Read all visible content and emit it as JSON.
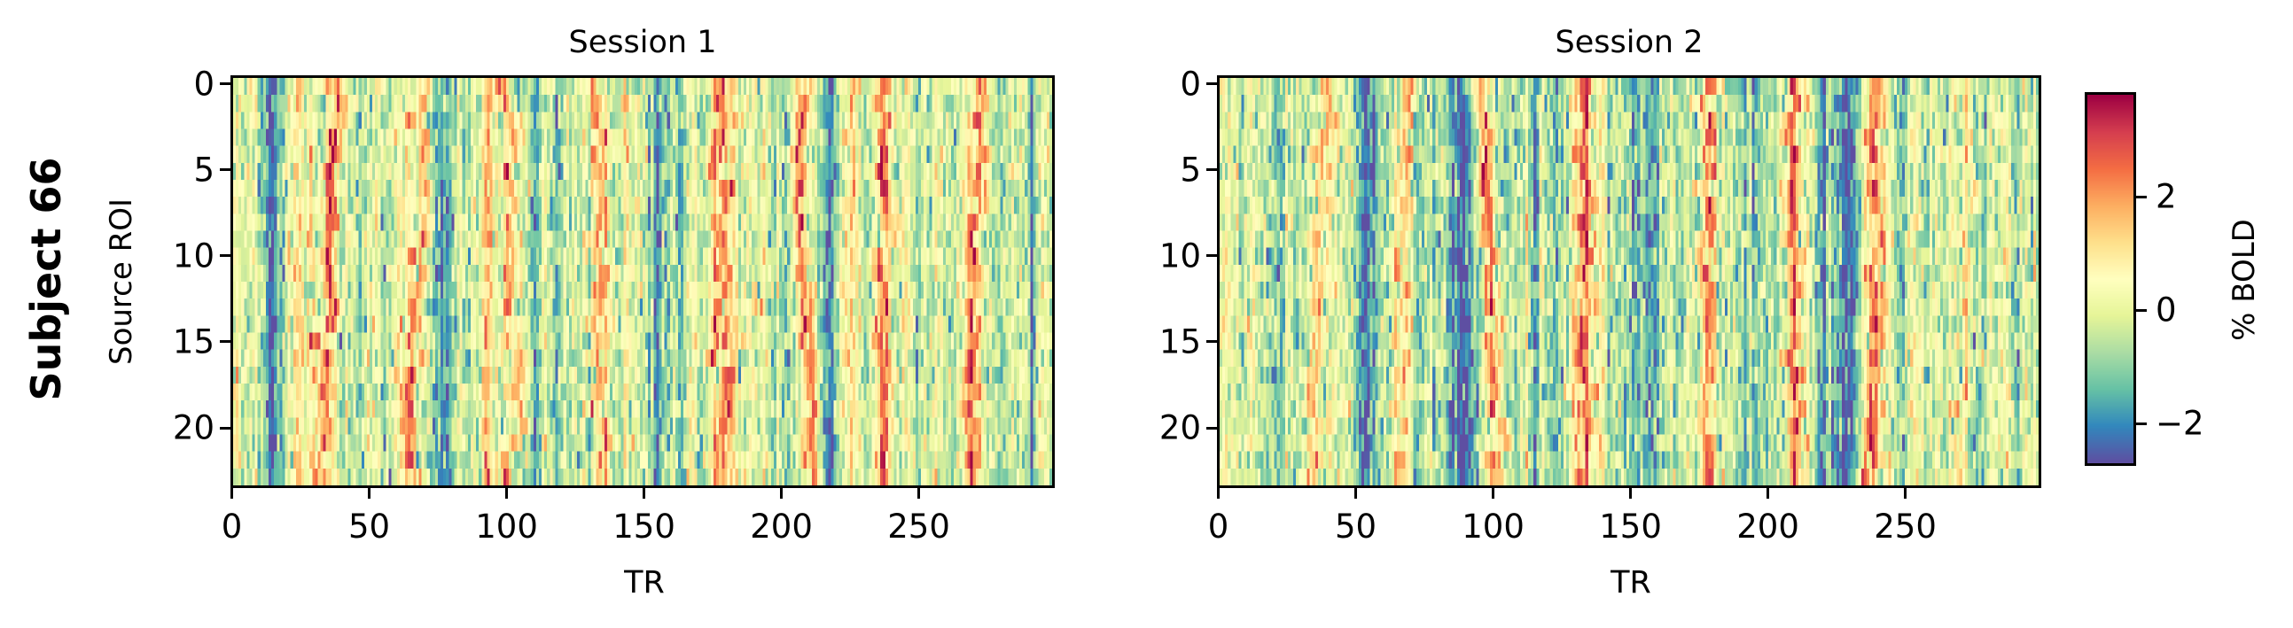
{
  "figure": {
    "title": "Subject 66"
  },
  "chart_data": [
    {
      "type": "heatmap",
      "title": "Session 1",
      "xlabel": "TR",
      "ylabel": "Source ROI",
      "x_range": [
        0,
        299
      ],
      "y_range": [
        0,
        23
      ],
      "n_rows": 24,
      "n_cols": 300,
      "xticks": [
        0,
        50,
        100,
        150,
        200,
        250
      ],
      "yticks": [
        0,
        5,
        10,
        15,
        20
      ],
      "colormap": "Spectral_r",
      "seed": 66,
      "peaks": [
        {
          "tr": 38,
          "drift": -7,
          "amp": 2.6
        },
        {
          "tr": 69,
          "drift": -4,
          "amp": 2.4
        },
        {
          "tr": 100,
          "drift": 2,
          "amp": 2.5
        },
        {
          "tr": 132,
          "drift": 2,
          "amp": 2.9
        },
        {
          "tr": 178,
          "drift": 0,
          "amp": 2.8
        },
        {
          "tr": 208,
          "drift": 3,
          "amp": 2.9
        },
        {
          "tr": 238,
          "drift": 0,
          "amp": 2.4
        },
        {
          "tr": 273,
          "drift": -3,
          "amp": 2.3
        }
      ],
      "troughs": [
        {
          "tr": 14,
          "amp": -1.2
        },
        {
          "tr": 218,
          "amp": -1.6
        },
        {
          "tr": 155,
          "amp": -1.0
        }
      ]
    },
    {
      "type": "heatmap",
      "title": "Session 2",
      "xlabel": "TR",
      "ylabel": "",
      "x_range": [
        0,
        299
      ],
      "y_range": [
        0,
        23
      ],
      "n_rows": 24,
      "n_cols": 300,
      "xticks": [
        0,
        50,
        100,
        150,
        200,
        250
      ],
      "yticks": [
        0,
        5,
        10,
        15,
        20
      ],
      "colormap": "Spectral_r",
      "seed": 67,
      "peaks": [
        {
          "tr": 38,
          "drift": -5,
          "amp": 2.5
        },
        {
          "tr": 67,
          "drift": -1,
          "amp": 2.2
        },
        {
          "tr": 96,
          "drift": 6,
          "amp": 2.7
        },
        {
          "tr": 133,
          "drift": 1,
          "amp": 2.5
        },
        {
          "tr": 178,
          "drift": 0,
          "amp": 2.6
        },
        {
          "tr": 209,
          "drift": 2,
          "amp": 2.4
        },
        {
          "tr": 241,
          "drift": -2,
          "amp": 2.4
        },
        {
          "tr": 274,
          "drift": -2,
          "amp": 2.3
        }
      ],
      "troughs": [
        {
          "tr": 88,
          "amp": -1.8
        },
        {
          "tr": 228,
          "amp": -1.6
        },
        {
          "tr": 155,
          "amp": -1.0
        },
        {
          "tr": 55,
          "amp": -0.9
        }
      ]
    }
  ],
  "colorbar": {
    "label": "% BOLD",
    "vmin": -2.75,
    "vmax": 3.85,
    "ticks": [
      -2,
      0,
      2
    ],
    "tick_labels": [
      "−2",
      "0",
      "2"
    ]
  },
  "colors": {
    "spectral_r": [
      "#5e4fa2",
      "#3288bd",
      "#66c2a5",
      "#abdda4",
      "#e6f598",
      "#ffffbf",
      "#fee08b",
      "#fdae61",
      "#f46d43",
      "#d53e4f",
      "#9e0142"
    ]
  }
}
